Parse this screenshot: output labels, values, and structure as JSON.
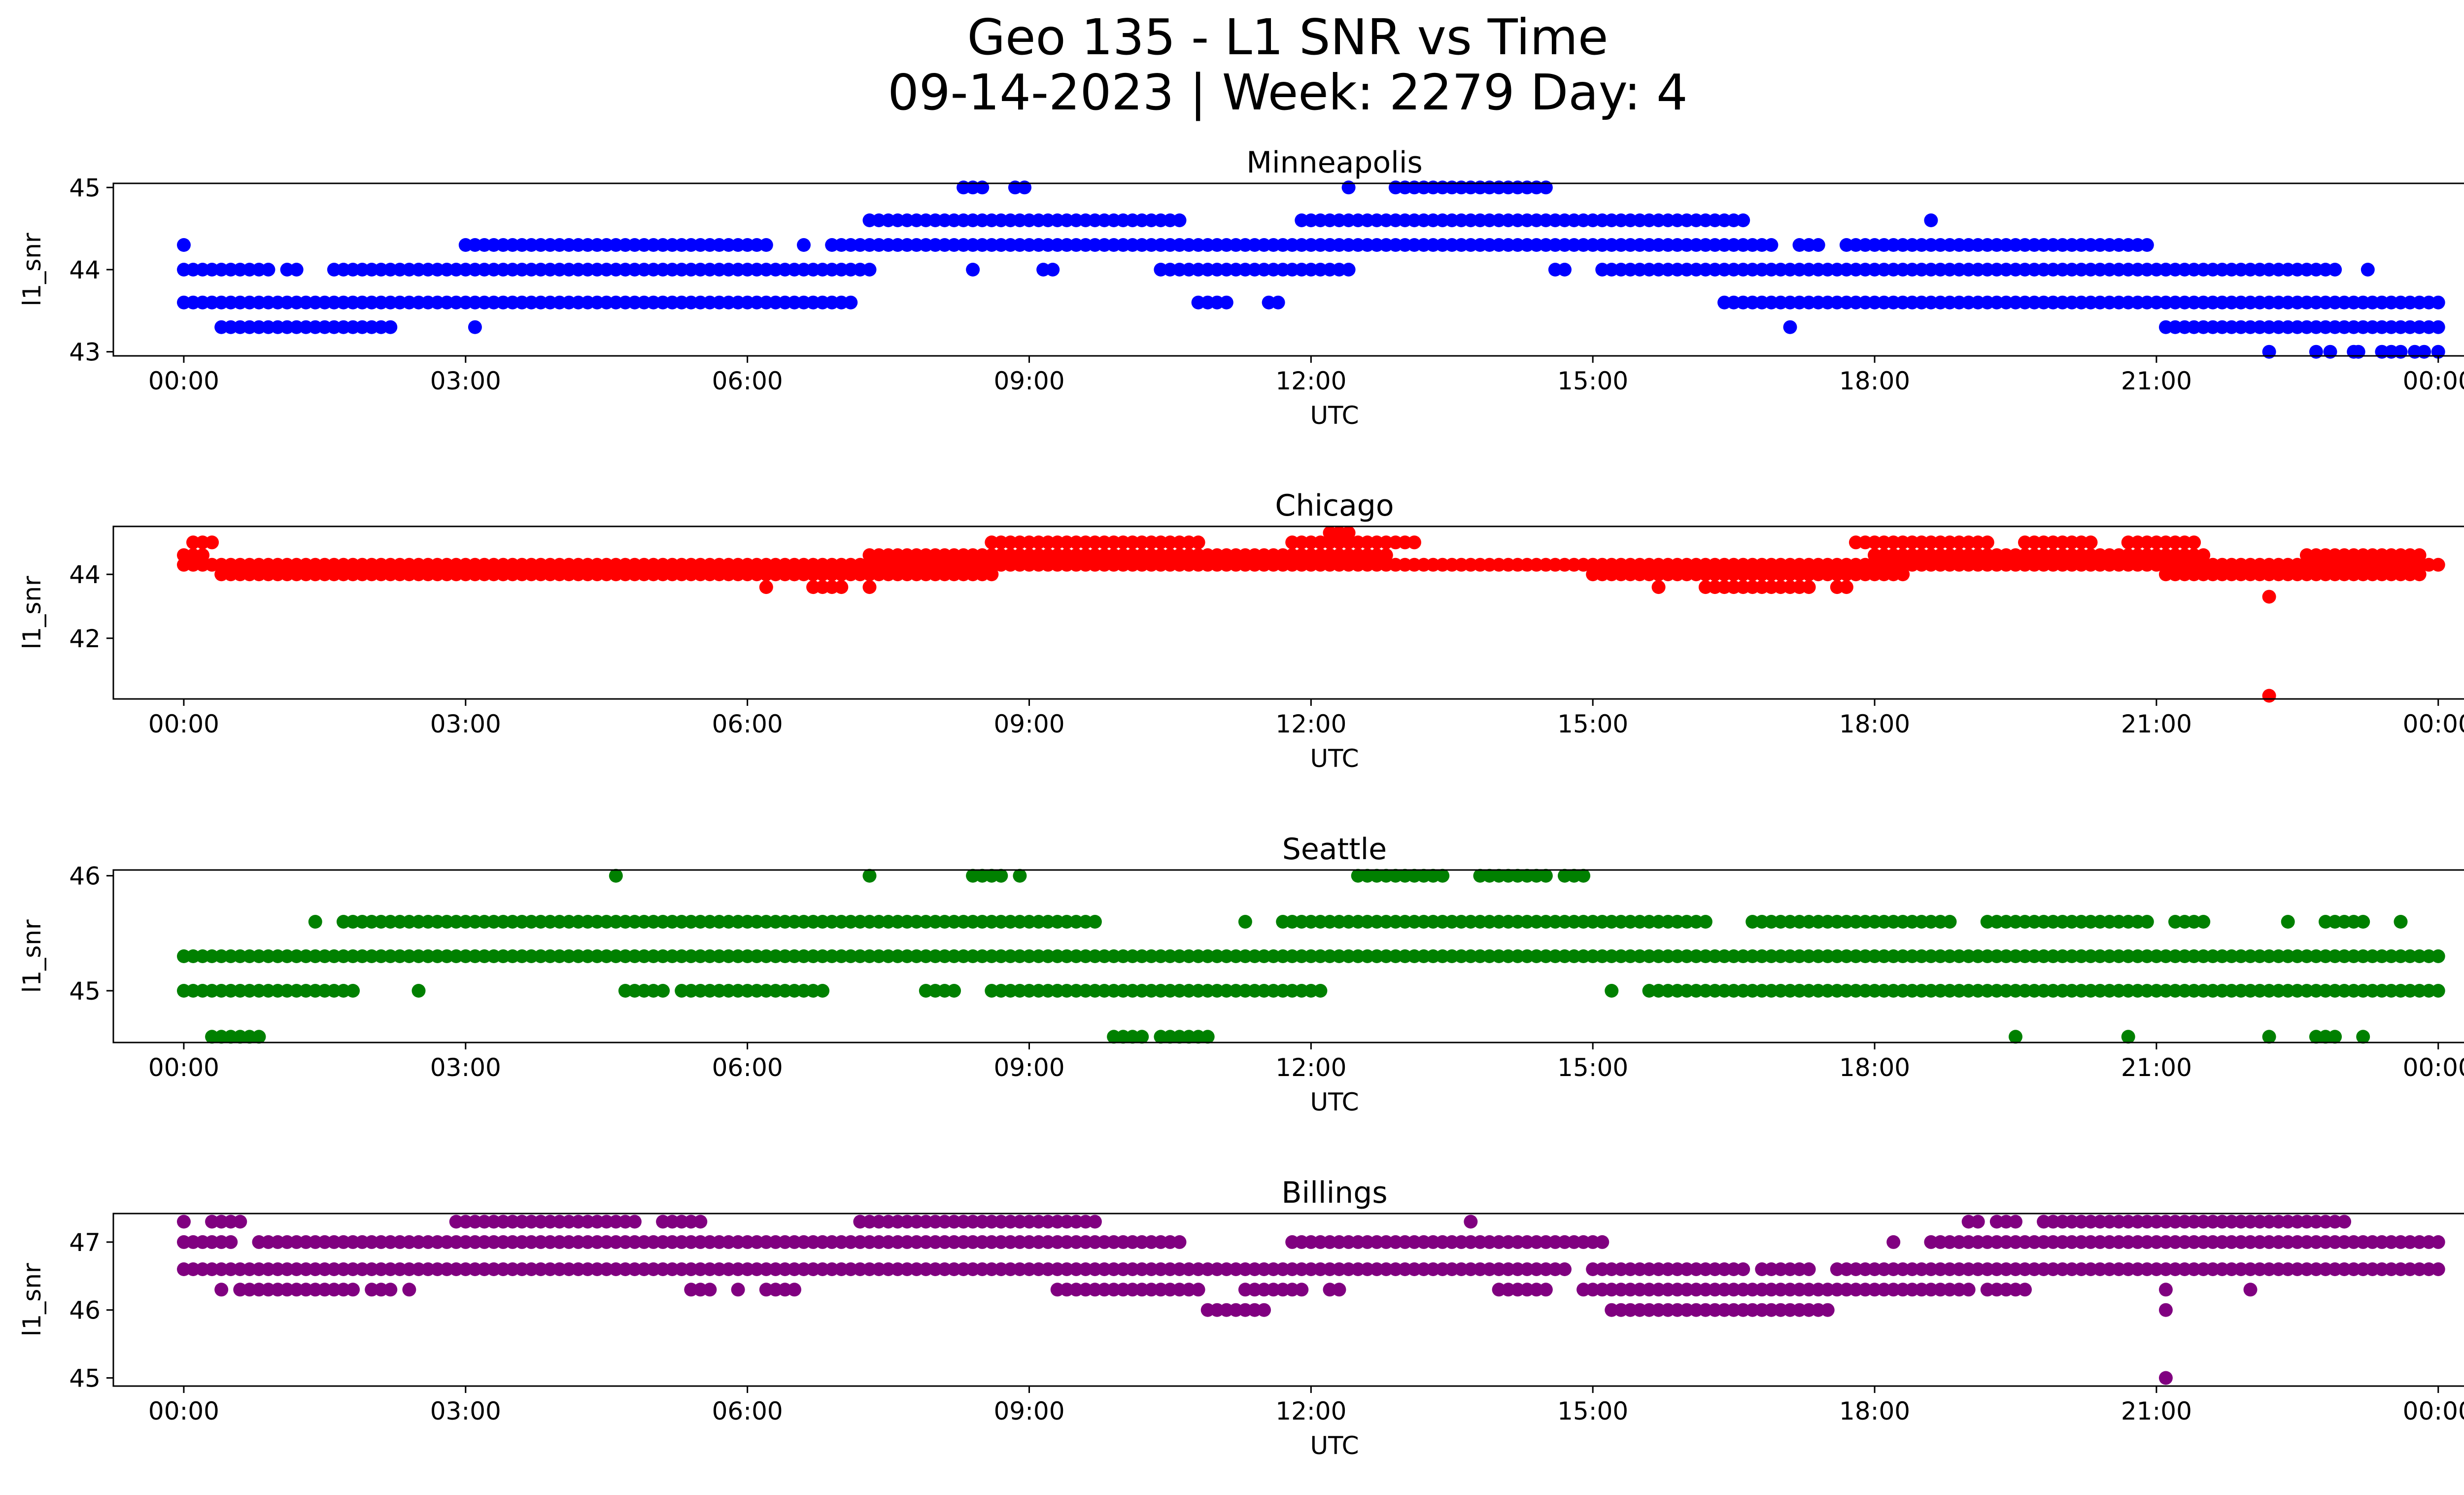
{
  "figure": {
    "title_line1": "Geo 135 - L1 SNR vs Time",
    "title_line2": "09-14-2023 | Week: 2279 Day: 4"
  },
  "chart_data": [
    {
      "type": "scatter",
      "title": "Minneapolis",
      "xlabel": "UTC",
      "ylabel": "l1_snr",
      "color": "#0000ff",
      "xlim_hours": [
        -0.75,
        25.25
      ],
      "ylim": [
        42.95,
        45.05
      ],
      "x_tick_labels": [
        "00:00",
        "03:00",
        "06:00",
        "09:00",
        "12:00",
        "15:00",
        "18:00",
        "21:00",
        "00:00"
      ],
      "y_ticks": [
        43,
        44,
        45
      ],
      "levels": [
        {
          "y": 43.0,
          "x": [
            22.2,
            22.7,
            22.85,
            23.1,
            23.15,
            23.4,
            23.5,
            23.6,
            23.75,
            23.85,
            24.0
          ]
        },
        {
          "y": 43.3,
          "x": [
            [
              0.4,
              2.2
            ],
            [
              3.1,
              3.1
            ],
            [
              17.1,
              17.1
            ],
            [
              21.1,
              24.0
            ]
          ]
        },
        {
          "y": 43.6,
          "x": [
            [
              0.0,
              7.1
            ],
            [
              10.8,
              11.15
            ],
            [
              11.55,
              11.65
            ],
            [
              16.4,
              24.0
            ]
          ]
        },
        {
          "y": 44.0,
          "x": [
            [
              0.0,
              0.95
            ],
            [
              1.1,
              1.2
            ],
            [
              1.6,
              7.3
            ],
            [
              8.4,
              8.4
            ],
            [
              9.15,
              9.25
            ],
            [
              10.4,
              12.4
            ],
            [
              14.6,
              14.75
            ],
            [
              15.1,
              21.1
            ],
            [
              21.1,
              22.9
            ],
            [
              23.25,
              23.3
            ]
          ]
        },
        {
          "y": 44.3,
          "x": [
            [
              0.0,
              0.0
            ],
            [
              3.0,
              6.2
            ],
            [
              6.6,
              6.6
            ],
            [
              6.9,
              12.2
            ],
            [
              12.2,
              16.9
            ],
            [
              17.2,
              17.4
            ],
            [
              17.7,
              20.9
            ]
          ]
        },
        {
          "y": 44.6,
          "x": [
            [
              7.3,
              10.6
            ],
            [
              11.9,
              16.6
            ],
            [
              18.6,
              18.6
            ]
          ]
        },
        {
          "y": 45.0,
          "x": [
            [
              8.3,
              8.5
            ],
            [
              8.85,
              9.0
            ],
            [
              12.4,
              12.4
            ],
            [
              12.9,
              14.5
            ]
          ]
        }
      ]
    },
    {
      "type": "scatter",
      "title": "Chicago",
      "xlabel": "UTC",
      "ylabel": "l1_snr",
      "color": "#ff0000",
      "xlim_hours": [
        -0.75,
        25.25
      ],
      "ylim": [
        40.1,
        45.5
      ],
      "x_tick_labels": [
        "00:00",
        "03:00",
        "06:00",
        "09:00",
        "12:00",
        "15:00",
        "18:00",
        "21:00",
        "00:00"
      ],
      "y_ticks": [
        42,
        44
      ],
      "levels": [
        {
          "y": 40.2,
          "x": [
            22.2
          ]
        },
        {
          "y": 43.3,
          "x": [
            22.2
          ]
        },
        {
          "y": 43.6,
          "x": [
            [
              6.2,
              6.2
            ],
            [
              6.7,
              7.0
            ],
            [
              7.3,
              7.3
            ],
            [
              15.7,
              15.7
            ],
            [
              16.2,
              17.3
            ],
            [
              17.6,
              17.7
            ]
          ]
        },
        {
          "y": 44.0,
          "x": [
            [
              0.4,
              6.5
            ],
            [
              6.5,
              8.6
            ],
            [
              15.0,
              18.3
            ],
            [
              21.1,
              23.8
            ]
          ]
        },
        {
          "y": 44.3,
          "x": [
            [
              0.0,
              24.0
            ]
          ]
        },
        {
          "y": 44.6,
          "x": [
            [
              0.0,
              0.2
            ],
            [
              7.3,
              12.8
            ],
            [
              18.0,
              21.5
            ],
            [
              22.6,
              23.8
            ]
          ]
        },
        {
          "y": 45.0,
          "x": [
            [
              0.1,
              0.3
            ],
            [
              8.6,
              10.8
            ],
            [
              11.8,
              13.1
            ],
            [
              17.8,
              19.2
            ],
            [
              19.6,
              20.3
            ],
            [
              20.7,
              21.4
            ]
          ]
        },
        {
          "y": 45.3,
          "x": [
            [
              12.2,
              12.4
            ]
          ]
        }
      ]
    },
    {
      "type": "scatter",
      "title": "Seattle",
      "xlabel": "UTC",
      "ylabel": "l1_snr",
      "color": "#008000",
      "xlim_hours": [
        -0.75,
        25.25
      ],
      "ylim": [
        44.55,
        46.05
      ],
      "x_tick_labels": [
        "00:00",
        "03:00",
        "06:00",
        "09:00",
        "12:00",
        "15:00",
        "18:00",
        "21:00",
        "00:00"
      ],
      "y_ticks": [
        45,
        46
      ],
      "levels": [
        {
          "y": 44.6,
          "x": [
            [
              0.3,
              0.8
            ],
            [
              9.9,
              10.2
            ],
            [
              10.4,
              10.6
            ],
            [
              10.7,
              10.9
            ],
            [
              19.5,
              19.5
            ],
            [
              20.7,
              20.7
            ],
            [
              22.2,
              22.2
            ],
            [
              22.7,
              22.9
            ],
            [
              23.2,
              23.2
            ]
          ]
        },
        {
          "y": 45.0,
          "x": [
            [
              0.0,
              1.8
            ],
            [
              2.5,
              2.5
            ],
            [
              4.7,
              5.1
            ],
            [
              5.3,
              6.8
            ],
            [
              7.9,
              8.2
            ],
            [
              8.6,
              9.3
            ],
            [
              9.3,
              12.1
            ],
            [
              15.2,
              15.2
            ],
            [
              15.6,
              24.0
            ]
          ]
        },
        {
          "y": 45.3,
          "x": [
            [
              0.0,
              24.0
            ]
          ]
        },
        {
          "y": 45.6,
          "x": [
            [
              1.4,
              1.4
            ],
            [
              1.7,
              9.7
            ],
            [
              11.3,
              11.3
            ],
            [
              11.7,
              16.2
            ],
            [
              16.7,
              18.8
            ],
            [
              19.2,
              20.9
            ],
            [
              21.2,
              21.5
            ],
            [
              22.4,
              22.4
            ],
            [
              22.8,
              23.2
            ],
            [
              23.6,
              23.6
            ]
          ]
        },
        {
          "y": 46.0,
          "x": [
            [
              4.6,
              4.6
            ],
            [
              7.3,
              7.3
            ],
            [
              8.4,
              8.7
            ],
            [
              8.9,
              8.9
            ],
            [
              12.5,
              13.4
            ],
            [
              13.8,
              14.5
            ],
            [
              14.7,
              14.9
            ]
          ]
        }
      ]
    },
    {
      "type": "scatter",
      "title": "Billings",
      "xlabel": "UTC",
      "ylabel": "l1_snr",
      "color": "#800080",
      "xlim_hours": [
        -0.75,
        25.25
      ],
      "ylim": [
        44.88,
        47.42
      ],
      "x_tick_labels": [
        "00:00",
        "03:00",
        "06:00",
        "09:00",
        "12:00",
        "15:00",
        "18:00",
        "21:00",
        "00:00"
      ],
      "y_ticks": [
        45,
        46,
        47
      ],
      "levels": [
        {
          "y": 45.0,
          "x": [
            21.1
          ]
        },
        {
          "y": 46.0,
          "x": [
            [
              10.9,
              11.5
            ],
            [
              15.2,
              17.5
            ],
            [
              21.1,
              21.1
            ]
          ]
        },
        {
          "y": 46.3,
          "x": [
            [
              0.4,
              0.4
            ],
            [
              0.6,
              1.8
            ],
            [
              2.0,
              2.2
            ],
            [
              2.4,
              2.4
            ],
            [
              5.4,
              5.6
            ],
            [
              5.9,
              5.9
            ],
            [
              6.2,
              6.5
            ],
            [
              9.3,
              10.8
            ],
            [
              11.3,
              11.9
            ],
            [
              12.2,
              12.3
            ],
            [
              14.0,
              14.5
            ],
            [
              14.9,
              19.0
            ],
            [
              19.2,
              19.6
            ],
            [
              21.1,
              21.1
            ],
            [
              22.0,
              22.0
            ]
          ]
        },
        {
          "y": 46.6,
          "x": [
            [
              0.0,
              14.7
            ],
            [
              15.0,
              16.6
            ],
            [
              16.8,
              17.3
            ],
            [
              17.6,
              24.0
            ]
          ]
        },
        {
          "y": 47.0,
          "x": [
            [
              0.0,
              0.5
            ],
            [
              0.8,
              1.2
            ],
            [
              1.3,
              10.6
            ],
            [
              11.8,
              15.1
            ],
            [
              18.2,
              18.2
            ],
            [
              18.6,
              24.0
            ]
          ]
        },
        {
          "y": 47.3,
          "x": [
            [
              0.0,
              0.0
            ],
            [
              0.3,
              0.6
            ],
            [
              2.9,
              4.8
            ],
            [
              5.1,
              5.5
            ],
            [
              7.2,
              9.7
            ],
            [
              13.7,
              13.7
            ],
            [
              19.0,
              19.1
            ],
            [
              19.3,
              19.5
            ],
            [
              19.8,
              23.0
            ]
          ]
        }
      ]
    }
  ]
}
